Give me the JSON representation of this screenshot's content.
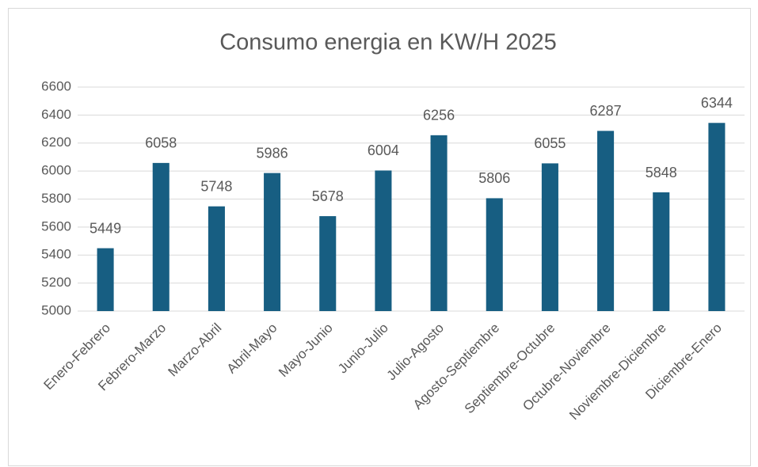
{
  "chart_data": {
    "type": "bar",
    "title": "Consumo energia en KW/H 2025",
    "categories": [
      "Enero-Febrero",
      "Febrero-Marzo",
      "Marzo-Abril",
      "Abril-Mayo",
      "Mayo-Junio",
      "Junio-Julio",
      "Julio-Agosto",
      "Agosto-Septiembre",
      "Septiembre-Octubre",
      "Octubre-Noviembre",
      "Noviembre-Diciembre",
      "Diciembre-Enero"
    ],
    "values": [
      5449,
      6058,
      5748,
      5986,
      5678,
      6004,
      6256,
      5806,
      6055,
      6287,
      5848,
      6344
    ],
    "color": "#175e82",
    "ylim": [
      5000,
      6600
    ],
    "yticks": [
      5000,
      5200,
      5400,
      5600,
      5800,
      6000,
      6200,
      6400,
      6600
    ],
    "grid": true
  }
}
